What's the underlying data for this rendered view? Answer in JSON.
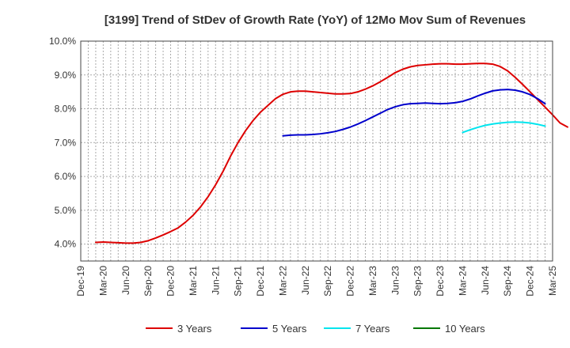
{
  "chart_data": {
    "type": "line",
    "title": "[3199]  Trend of StDev of Growth Rate (YoY) of 12Mo Mov Sum of Revenues",
    "xlabel": "",
    "ylabel": "",
    "ylim": [
      3.5,
      10.0
    ],
    "yticks": [
      4.0,
      5.0,
      6.0,
      7.0,
      8.0,
      9.0,
      10.0
    ],
    "ytick_labels": [
      "4.0%",
      "5.0%",
      "6.0%",
      "7.0%",
      "8.0%",
      "9.0%",
      "10.0%"
    ],
    "x_tick_labels": [
      "Dec-19",
      "Mar-20",
      "Jun-20",
      "Sep-20",
      "Dec-20",
      "Mar-21",
      "Jun-21",
      "Sep-21",
      "Dec-21",
      "Mar-22",
      "Jun-22",
      "Sep-22",
      "Dec-22",
      "Mar-23",
      "Jun-23",
      "Sep-23",
      "Dec-23",
      "Mar-24",
      "Jun-24",
      "Sep-24",
      "Dec-24",
      "Mar-25"
    ],
    "grid": true,
    "legend_position": "bottom",
    "series": [
      {
        "name": "3 Years",
        "color": "#dd0000",
        "start_month_index": 2,
        "values": [
          4.05,
          4.06,
          4.05,
          4.04,
          4.03,
          4.03,
          4.05,
          4.1,
          4.18,
          4.27,
          4.37,
          4.48,
          4.65,
          4.85,
          5.1,
          5.4,
          5.75,
          6.15,
          6.6,
          7.0,
          7.35,
          7.65,
          7.9,
          8.1,
          8.3,
          8.43,
          8.5,
          8.52,
          8.52,
          8.5,
          8.48,
          8.46,
          8.44,
          8.44,
          8.45,
          8.5,
          8.58,
          8.68,
          8.8,
          8.93,
          9.07,
          9.17,
          9.24,
          9.28,
          9.3,
          9.32,
          9.33,
          9.33,
          9.32,
          9.32,
          9.33,
          9.34,
          9.34,
          9.32,
          9.25,
          9.12,
          8.93,
          8.72,
          8.5,
          8.27,
          8.05,
          7.82,
          7.58,
          7.46
        ]
      },
      {
        "name": "5 Years",
        "color": "#0000cc",
        "start_month_index": 27,
        "values": [
          7.2,
          7.22,
          7.23,
          7.23,
          7.24,
          7.26,
          7.29,
          7.33,
          7.39,
          7.46,
          7.55,
          7.65,
          7.76,
          7.87,
          7.98,
          8.06,
          8.12,
          8.15,
          8.16,
          8.17,
          8.16,
          8.15,
          8.16,
          8.18,
          8.22,
          8.29,
          8.38,
          8.46,
          8.53,
          8.56,
          8.57,
          8.55,
          8.5,
          8.42,
          8.3,
          8.15
        ]
      },
      {
        "name": "7 Years",
        "color": "#00e5ee",
        "start_month_index": 51,
        "values": [
          7.3,
          7.38,
          7.45,
          7.51,
          7.55,
          7.58,
          7.6,
          7.61,
          7.6,
          7.58,
          7.54,
          7.49
        ]
      },
      {
        "name": "10 Years",
        "color": "#007700",
        "start_month_index": 0,
        "values": []
      }
    ]
  }
}
